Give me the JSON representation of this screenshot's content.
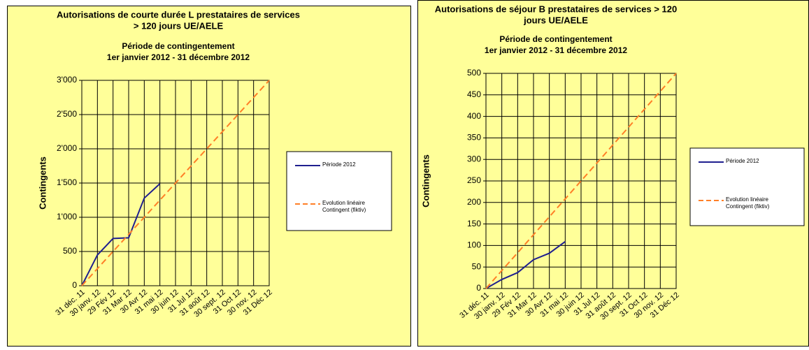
{
  "chart_data": [
    {
      "type": "line",
      "title": [
        "Autorisations de courte durée L prestataires de services",
        "> 120 jours UE/AELE"
      ],
      "subtitle": [
        "Période de contingentement",
        "1er janvier 2012 - 31 décembre 2012"
      ],
      "y_label": "Contingents",
      "categories": [
        "31 déc. 11",
        "30 janv. 12",
        "29 Fév 12",
        "31 Mar 12",
        "30 Avr 12",
        "31 mai 12",
        "30 juin 12",
        "31 Jul 12",
        "31 août 12",
        "30 sept. 12",
        "31 Oct 12",
        "30 nov. 12",
        "31 Déc 12"
      ],
      "series": [
        {
          "name": "Période 2012",
          "color": "#1f1f8f",
          "dash": false,
          "values": [
            0,
            450,
            690,
            700,
            1280,
            1490,
            null,
            null,
            null,
            null,
            null,
            null,
            null
          ]
        },
        {
          "name": "Evolution linéaire Contingent (fiktiv)",
          "color": "#ff7f27",
          "dash": true,
          "values": [
            0,
            250,
            500,
            750,
            1000,
            1250,
            1500,
            1750,
            2000,
            2250,
            2500,
            2750,
            3000
          ]
        }
      ],
      "ylim": [
        0,
        3000
      ],
      "yticks": [
        0,
        500,
        {
          "value": 1000,
          "label": "1'000"
        },
        {
          "value": 1500,
          "label": "1'500"
        },
        {
          "value": 2000,
          "label": "2'000"
        },
        {
          "value": 2500,
          "label": "2'500"
        },
        {
          "value": 3000,
          "label": "3'000"
        }
      ],
      "grid": true
    },
    {
      "type": "line",
      "title": [
        "Autorisations de séjour B prestataires de services > 120",
        "jours UE/AELE"
      ],
      "subtitle": [
        "Période de contingentement",
        "1er janvier 2012 - 31 décembre 2012"
      ],
      "y_label": "Contingents",
      "categories": [
        "31 déc. 11",
        "30 janv. 12",
        "29 Fév 12",
        "31 Mar 12",
        "30 Avr 12",
        "31 mai 12",
        "30 juin 12",
        "31 Jul 12",
        "31 août 12",
        "30 sept. 12",
        "31 Oct 12",
        "30 nov. 12",
        "31 Déc 12"
      ],
      "series": [
        {
          "name": "Période 2012",
          "color": "#1f1f8f",
          "dash": false,
          "values": [
            0,
            21,
            37,
            67,
            82,
            109,
            null,
            null,
            null,
            null,
            null,
            null,
            null
          ]
        },
        {
          "name": "Evolution linéaire Contingent (fiktiv)",
          "color": "#ff7f27",
          "dash": true,
          "values": [
            0,
            41.7,
            83.3,
            125,
            166.7,
            208.3,
            250,
            291.7,
            333.3,
            375,
            416.7,
            458.3,
            500
          ]
        }
      ],
      "ylim": [
        0,
        500
      ],
      "yticks": [
        0,
        50,
        100,
        150,
        200,
        250,
        300,
        350,
        400,
        450,
        500
      ],
      "grid": true
    }
  ]
}
